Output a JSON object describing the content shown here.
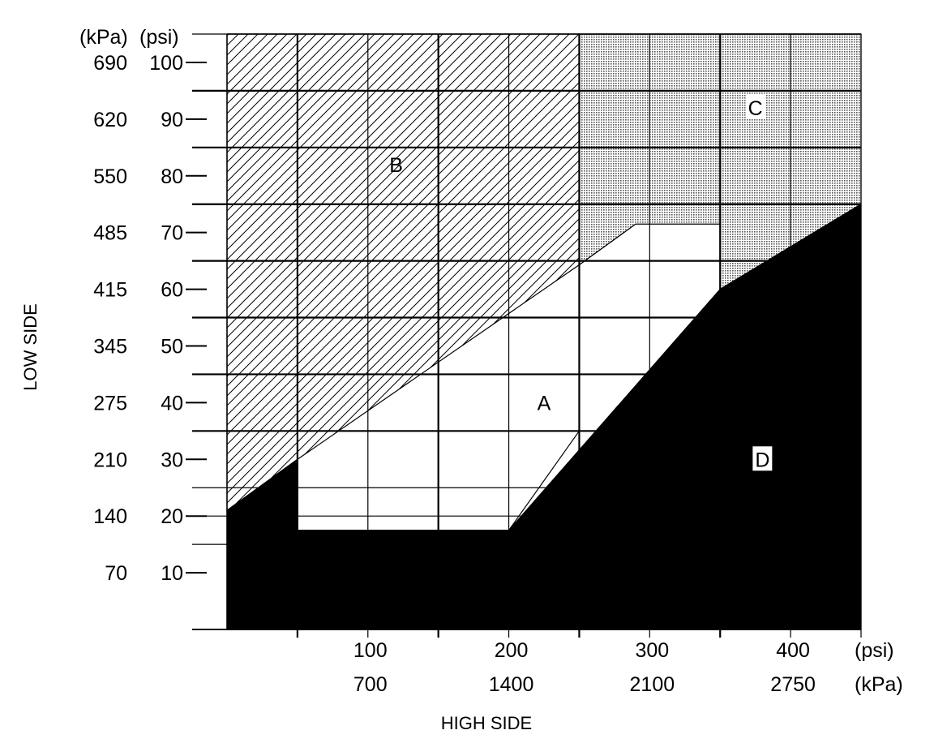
{
  "chart_data": {
    "type": "area",
    "title": "",
    "xlabel": "HIGH SIDE",
    "ylabel": "LOW SIDE",
    "x_units": {
      "primary": "(psi)",
      "secondary": "(kPa)"
    },
    "y_units": {
      "primary": "(psi)",
      "secondary": "(kPa)"
    },
    "xlim": [
      0,
      450
    ],
    "ylim": [
      0,
      105
    ],
    "x_ticks": [
      {
        "psi": 100,
        "psi_label": "100",
        "kpa_label": "700"
      },
      {
        "psi": 200,
        "psi_label": "200",
        "kpa_label": "1400"
      },
      {
        "psi": 300,
        "psi_label": "300",
        "kpa_label": "2100"
      },
      {
        "psi": 400,
        "psi_label": "400",
        "kpa_label": "2750"
      }
    ],
    "y_ticks": [
      {
        "psi": 100,
        "psi_label": "100",
        "kpa_label": "690"
      },
      {
        "psi": 90,
        "psi_label": "90",
        "kpa_label": "620"
      },
      {
        "psi": 80,
        "psi_label": "80",
        "kpa_label": "550"
      },
      {
        "psi": 70,
        "psi_label": "70",
        "kpa_label": "485"
      },
      {
        "psi": 60,
        "psi_label": "60",
        "kpa_label": "415"
      },
      {
        "psi": 50,
        "psi_label": "50",
        "kpa_label": "345"
      },
      {
        "psi": 40,
        "psi_label": "40",
        "kpa_label": "275"
      },
      {
        "psi": 30,
        "psi_label": "30",
        "kpa_label": "210"
      },
      {
        "psi": 20,
        "psi_label": "20",
        "kpa_label": "140"
      },
      {
        "psi": 10,
        "psi_label": "10",
        "kpa_label": "70"
      }
    ],
    "x_grid": [
      50,
      100,
      150,
      200,
      250,
      300,
      350,
      400,
      450
    ],
    "y_grid": [
      15,
      20,
      25,
      35,
      45,
      55,
      65,
      75,
      85,
      95,
      105
    ],
    "regions": [
      {
        "label": "A",
        "fill": "white",
        "polygon": [
          [
            50,
            17.5
          ],
          [
            200,
            17.5
          ],
          [
            250,
            35
          ],
          [
            250,
            64.3
          ],
          [
            290,
            71.5
          ],
          [
            350,
            71.5
          ],
          [
            350,
            57
          ],
          [
            300,
            41
          ],
          [
            200,
            17.5
          ]
        ],
        "label_at": [
          225,
          40
        ]
      },
      {
        "label": "B",
        "fill": "hatch",
        "polygon": [
          [
            0,
            105
          ],
          [
            250,
            105
          ],
          [
            250,
            64.3
          ],
          [
            50,
            30
          ],
          [
            0,
            21
          ]
        ],
        "label_at": [
          120,
          82
        ]
      },
      {
        "label": "C",
        "fill": "dots",
        "polygon": [
          [
            250,
            105
          ],
          [
            450,
            105
          ],
          [
            450,
            75
          ],
          [
            350,
            60
          ],
          [
            350,
            71.5
          ],
          [
            290,
            71.5
          ],
          [
            250,
            64.3
          ]
        ],
        "label_at": [
          375,
          92
        ]
      },
      {
        "label": "D",
        "fill": "black",
        "polygon": [
          [
            0,
            0
          ],
          [
            450,
            0
          ],
          [
            450,
            75
          ],
          [
            350,
            60
          ],
          [
            200,
            17.5
          ],
          [
            50,
            17.5
          ],
          [
            50,
            30
          ],
          [
            0,
            21
          ]
        ],
        "label_at": [
          380,
          30
        ]
      }
    ],
    "grid": true,
    "colors": {
      "ink": "#000000",
      "paper": "#ffffff",
      "dots": "#c8c8c8"
    }
  }
}
